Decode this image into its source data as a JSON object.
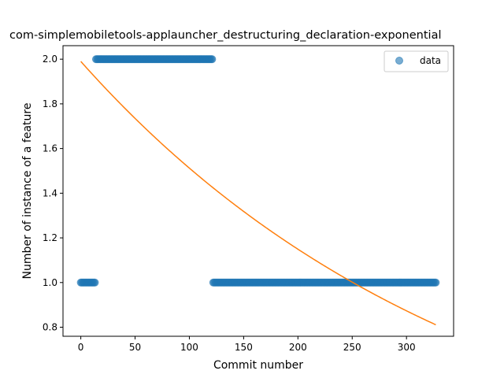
{
  "chart_data": {
    "type": "scatter",
    "title": "com-simplemobiletools-applauncher_destructuring_declaration-exponential",
    "xlabel": "Commit number",
    "ylabel": "Number of instance of a feature",
    "xlim": [
      -16.4,
      343.4
    ],
    "ylim": [
      0.7595,
      2.0605
    ],
    "xticks": [
      0,
      50,
      100,
      150,
      200,
      250,
      300
    ],
    "yticks": [
      0.8,
      1.0,
      1.2,
      1.4,
      1.6,
      1.8,
      2.0
    ],
    "ytick_labels": [
      "0.8",
      "1.0",
      "1.2",
      "1.4",
      "1.6",
      "1.8",
      "2.0"
    ],
    "grid": false,
    "legend": {
      "position": "upper right",
      "entries": [
        "data"
      ]
    },
    "series": [
      {
        "name": "data",
        "kind": "scatter",
        "color": "#1f77b4",
        "segments": [
          {
            "x_start": 0,
            "x_end": 13,
            "y": 1
          },
          {
            "x_start": 14,
            "x_end": 121,
            "y": 2
          },
          {
            "x_start": 122,
            "x_end": 327,
            "y": 1
          }
        ]
      },
      {
        "kind": "line",
        "color": "#ff7f0e",
        "fit": {
          "a": 1.99,
          "b": 0.002745
        },
        "x_range": [
          0,
          327
        ]
      }
    ]
  }
}
